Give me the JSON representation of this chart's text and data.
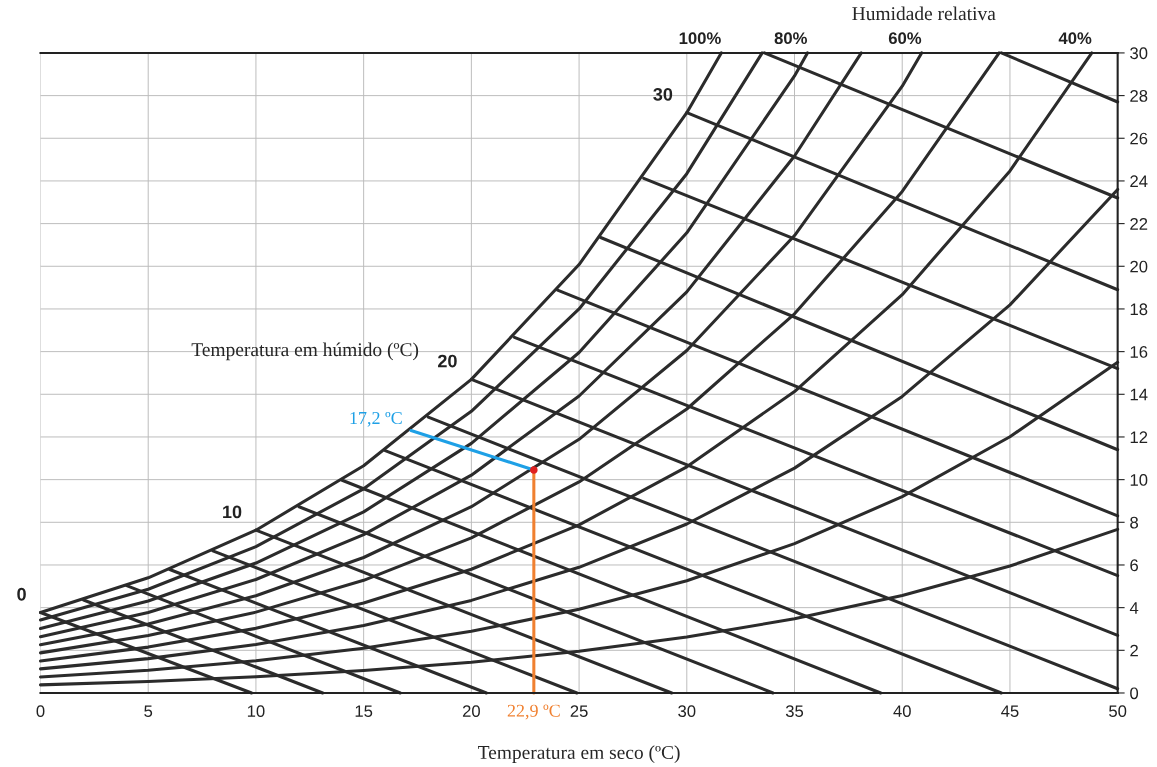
{
  "chart_data": {
    "type": "line",
    "title": "Humidade relativa",
    "xlabel": "Temperatura em seco (ºC)",
    "xlim": [
      0,
      50
    ],
    "xticks": [
      0,
      5,
      10,
      15,
      20,
      25,
      30,
      35,
      40,
      45,
      50
    ],
    "ylim": [
      0,
      30
    ],
    "yticks": [
      0,
      2,
      4,
      6,
      8,
      10,
      12,
      14,
      16,
      18,
      20,
      22,
      24,
      26,
      28,
      30
    ],
    "grid": true,
    "legend": false,
    "marker": "none",
    "line_style": "solid",
    "annotations": [
      "Temperatura em húmido (ºC)",
      {
        "text": "0",
        "x": 0,
        "y": 3.77
      },
      {
        "text": "10",
        "x": 10,
        "y": 7.63
      },
      {
        "text": "20",
        "x": 20,
        "y": 14.7
      },
      {
        "text": "30",
        "x": 30,
        "y": 27.2
      }
    ],
    "series": [
      {
        "name": "100%",
        "color": "#2b2b2b",
        "x": [
          31.6,
          30,
          25,
          20,
          15,
          10,
          5,
          0
        ],
        "values": [
          30,
          27.2,
          20.08,
          14.7,
          10.65,
          7.63,
          5.4,
          3.77
        ]
      },
      {
        "color": "#2b2b2b",
        "x": [
          33.5,
          30,
          25,
          20,
          15,
          10,
          5,
          0
        ],
        "values": [
          30,
          24.34,
          18.0,
          13.2,
          9.57,
          6.86,
          4.86,
          3.42
        ]
      },
      {
        "name": "80%",
        "color": "#2b2b2b",
        "x": [
          35.6,
          35,
          30,
          25,
          20,
          15,
          10,
          5,
          0
        ],
        "values": [
          30,
          28.92,
          21.57,
          15.96,
          11.7,
          8.49,
          6.09,
          4.31,
          3.02
        ]
      },
      {
        "color": "#2b2b2b",
        "x": [
          38.1,
          35,
          30,
          25,
          20,
          15,
          10,
          5,
          0
        ],
        "values": [
          30,
          25.17,
          18.8,
          13.92,
          10.21,
          7.42,
          5.32,
          3.77,
          2.64
        ]
      },
      {
        "name": "60%",
        "color": "#2b2b2b",
        "x": [
          40.9,
          40,
          35,
          30,
          25,
          20,
          15,
          10,
          5,
          0
        ],
        "values": [
          30,
          28.44,
          21.44,
          16.05,
          11.89,
          8.73,
          6.35,
          4.56,
          3.23,
          2.26
        ]
      },
      {
        "color": "#2b2b2b",
        "x": [
          44.5,
          40,
          35,
          30,
          25,
          20,
          15,
          10,
          5,
          0
        ],
        "values": [
          30,
          23.51,
          17.77,
          13.31,
          9.89,
          7.27,
          5.28,
          3.79,
          2.69,
          1.88
        ]
      },
      {
        "name": "40%",
        "color": "#2b2b2b",
        "x": [
          48.8,
          45,
          40,
          35,
          30,
          25,
          20,
          15,
          10,
          5,
          0
        ],
        "values": [
          30,
          24.47,
          18.67,
          14.13,
          10.6,
          7.88,
          5.8,
          4.22,
          3.03,
          2.15,
          1.5
        ]
      },
      {
        "color": "#2b2b2b",
        "x": [
          50,
          45,
          40,
          35,
          30,
          25,
          20,
          15,
          10,
          5,
          0
        ],
        "values": [
          23.6,
          18.19,
          13.9,
          10.54,
          7.92,
          5.89,
          4.34,
          3.16,
          2.27,
          1.61,
          1.13
        ]
      },
      {
        "color": "#2b2b2b",
        "x": [
          50,
          45,
          40,
          35,
          30,
          25,
          20,
          15,
          10,
          5,
          0
        ],
        "values": [
          15.5,
          12.01,
          9.2,
          7.0,
          5.26,
          3.92,
          2.89,
          2.1,
          1.51,
          1.07,
          0.75
        ]
      },
      {
        "color": "#2b2b2b",
        "x": [
          50,
          45,
          40,
          35,
          30,
          25,
          20,
          15,
          10,
          5,
          0
        ],
        "values": [
          7.67,
          5.95,
          4.57,
          3.48,
          2.62,
          1.96,
          1.44,
          1.05,
          0.76,
          0.54,
          0.38
        ]
      },
      {
        "color": "#2b2b2b",
        "x": [
          0,
          9.8
        ],
        "values": [
          3.77,
          0
        ]
      },
      {
        "color": "#2b2b2b",
        "x": [
          2,
          13.1
        ],
        "values": [
          4.36,
          0
        ]
      },
      {
        "color": "#2b2b2b",
        "x": [
          4,
          16.7
        ],
        "values": [
          5.03,
          0
        ]
      },
      {
        "color": "#2b2b2b",
        "x": [
          6,
          20.7
        ],
        "values": [
          5.79,
          0
        ]
      },
      {
        "color": "#2b2b2b",
        "x": [
          8,
          24.9
        ],
        "values": [
          6.66,
          0
        ]
      },
      {
        "color": "#2b2b2b",
        "x": [
          10,
          29.3
        ],
        "values": [
          7.63,
          0
        ]
      },
      {
        "color": "#2b2b2b",
        "x": [
          12,
          34.0
        ],
        "values": [
          8.73,
          0
        ]
      },
      {
        "color": "#2b2b2b",
        "x": [
          14,
          39.0
        ],
        "values": [
          9.97,
          0
        ]
      },
      {
        "color": "#2b2b2b",
        "x": [
          16,
          44.6
        ],
        "values": [
          11.36,
          0
        ]
      },
      {
        "color": "#2b2b2b",
        "x": [
          18,
          50
        ],
        "values": [
          12.93,
          0.2
        ]
      },
      {
        "color": "#2b2b2b",
        "x": [
          20,
          50
        ],
        "values": [
          14.7,
          2.7
        ]
      },
      {
        "color": "#2b2b2b",
        "x": [
          22,
          50
        ],
        "values": [
          16.67,
          5.5
        ]
      },
      {
        "color": "#2b2b2b",
        "x": [
          24,
          50
        ],
        "values": [
          18.88,
          8.3
        ]
      },
      {
        "color": "#2b2b2b",
        "x": [
          26,
          50
        ],
        "values": [
          21.35,
          11.4
        ]
      },
      {
        "color": "#2b2b2b",
        "x": [
          28,
          50
        ],
        "values": [
          24.12,
          15.2
        ]
      },
      {
        "color": "#2b2b2b",
        "x": [
          30,
          50
        ],
        "values": [
          27.2,
          18.9
        ]
      },
      {
        "color": "#2b2b2b",
        "x": [
          33.6,
          50
        ],
        "values": [
          30,
          23.2
        ]
      },
      {
        "color": "#2b2b2b",
        "x": [
          44.6,
          50
        ],
        "values": [
          30,
          27.7
        ]
      },
      {
        "name": "17,2 ºC",
        "color": "#1ea0e6",
        "x": [
          17.2,
          22.9
        ],
        "values": [
          12.3,
          10.45
        ]
      },
      {
        "name": "22,9 ºC",
        "color": "#f08030",
        "x": [
          22.9,
          22.9
        ],
        "values": [
          0,
          10.45
        ]
      },
      {
        "type": "scatter",
        "color": "#e02020",
        "x": [
          22.9
        ],
        "values": [
          10.45
        ]
      }
    ]
  }
}
